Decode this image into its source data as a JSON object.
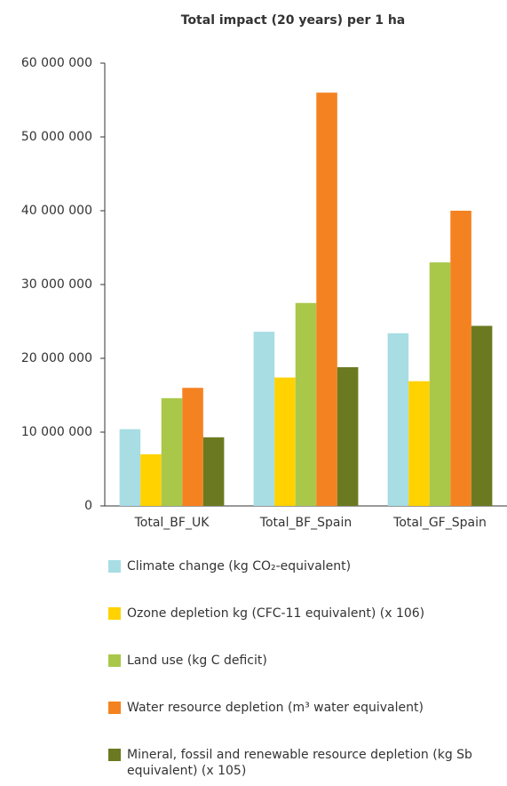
{
  "chart_data": {
    "type": "bar",
    "title": "Total impact (20 years) per 1 ha",
    "categories": [
      "Total_BF_UK",
      "Total_BF_Spain",
      "Total_GF_Spain"
    ],
    "series": [
      {
        "name": "Climate change (kg CO₂-equivalent)",
        "color": "#a8dde4",
        "values": [
          10400000,
          23600000,
          23400000
        ]
      },
      {
        "name": "Ozone depletion kg (CFC-11 equivalent) (x 106)",
        "color": "#ffd200",
        "values": [
          7000000,
          17400000,
          16900000
        ]
      },
      {
        "name": "Land use (kg C deficit)",
        "color": "#a9c84a",
        "values": [
          14600000,
          27500000,
          33000000
        ]
      },
      {
        "name": "Water resource depletion (m³ water equivalent)",
        "color": "#f58220",
        "values": [
          16000000,
          56000000,
          40000000
        ]
      },
      {
        "name": "Mineral, fossil and renewable resource depletion (kg Sb equivalent)  (x 105)",
        "color": "#6b7a21",
        "values": [
          9300000,
          18800000,
          24400000
        ]
      }
    ],
    "ylim": [
      0,
      60000000
    ],
    "yticks": [
      0,
      {
        "value": 10000000,
        "label": "10 000 000"
      },
      {
        "value": 20000000,
        "label": "20 000 000"
      },
      {
        "value": 30000000,
        "label": "30 000 000"
      },
      {
        "value": 40000000,
        "label": "40 000 000"
      },
      {
        "value": 50000000,
        "label": "50 000 000"
      },
      {
        "value": 60000000,
        "label": "60 000 000"
      }
    ],
    "grid": false
  }
}
